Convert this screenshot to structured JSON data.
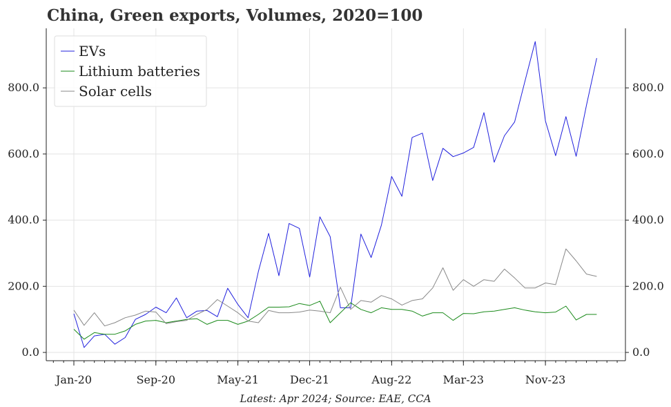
{
  "chart_data": {
    "type": "line",
    "title": "China, Green exports, Volumes, 2020=100",
    "caption": "Latest: Apr 2024; Source: EAE, CCA",
    "xlabel": "",
    "ylabel": "",
    "ylim": [
      -25,
      980
    ],
    "yticks": [
      0,
      200,
      400,
      600,
      800
    ],
    "ytick_labels": [
      "0.0",
      "200.0",
      "400.0",
      "600.0",
      "800.0"
    ],
    "x_start": "Jan-20",
    "n_points": 52,
    "x_tick_labels": [
      {
        "index": 0,
        "label": "Jan-20"
      },
      {
        "index": 8,
        "label": "Sep-20"
      },
      {
        "index": 16,
        "label": "May-21"
      },
      {
        "index": 23,
        "label": "Dec-21"
      },
      {
        "index": 31,
        "label": "Aug-22"
      },
      {
        "index": 38,
        "label": "Mar-23"
      },
      {
        "index": 46,
        "label": "Nov-23"
      }
    ],
    "grid": true,
    "legend_position": "top-left",
    "series": [
      {
        "name": "EVs",
        "color": "#1f1fdd",
        "values": [
          117,
          15,
          50,
          55,
          25,
          45,
          100,
          115,
          137,
          120,
          165,
          105,
          125,
          127,
          108,
          194,
          145,
          105,
          245,
          360,
          232,
          390,
          375,
          228,
          410,
          350,
          135,
          135,
          358,
          287,
          385,
          532,
          472,
          650,
          663,
          520,
          617,
          592,
          603,
          620,
          725,
          575,
          655,
          697,
          820,
          940,
          700,
          595,
          713,
          593,
          747,
          890
        ]
      },
      {
        "name": "Lithium batteries",
        "color": "#1a8a1a",
        "values": [
          70,
          40,
          60,
          55,
          55,
          65,
          85,
          95,
          97,
          90,
          95,
          100,
          102,
          85,
          97,
          97,
          85,
          95,
          115,
          137,
          137,
          138,
          148,
          142,
          155,
          90,
          120,
          150,
          130,
          120,
          135,
          130,
          130,
          125,
          110,
          120,
          120,
          97,
          118,
          117,
          123,
          125,
          130,
          135,
          128,
          123,
          120,
          122,
          140,
          98,
          115,
          115
        ]
      },
      {
        "name": "Solar cells",
        "color": "#888888",
        "values": [
          128,
          82,
          120,
          80,
          90,
          105,
          113,
          125,
          122,
          87,
          93,
          97,
          115,
          130,
          160,
          140,
          120,
          95,
          90,
          127,
          120,
          120,
          122,
          128,
          125,
          120,
          197,
          130,
          157,
          152,
          172,
          162,
          143,
          157,
          162,
          195,
          256,
          188,
          220,
          200,
          220,
          215,
          252,
          225,
          195,
          195,
          210,
          205,
          313,
          277,
          237,
          230
        ]
      }
    ]
  }
}
